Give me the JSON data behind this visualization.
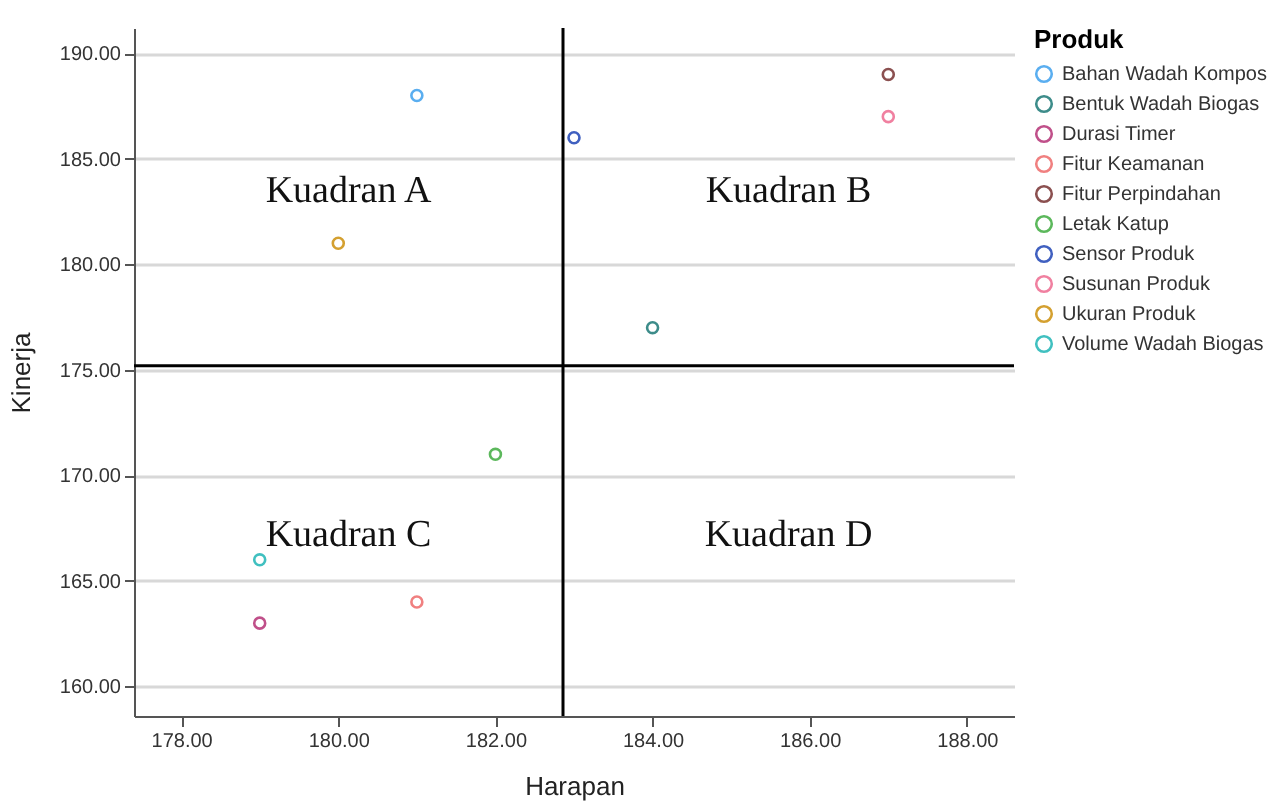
{
  "chart_data": {
    "type": "scatter",
    "xlabel": "Harapan",
    "ylabel": "Kinerja",
    "legend_title": "Produk",
    "legend": "top right",
    "grid": "y",
    "marker": "circle",
    "xlim": [
      177.4,
      188.6
    ],
    "ylim": [
      158.6,
      191.2
    ],
    "xticks": [
      {
        "value": 178,
        "label": "178.00"
      },
      {
        "value": 180,
        "label": "180.00"
      },
      {
        "value": 182,
        "label": "182.00"
      },
      {
        "value": 184,
        "label": "184.00"
      },
      {
        "value": 186,
        "label": "186.00"
      },
      {
        "value": 188,
        "label": "188.00"
      }
    ],
    "yticks": [
      {
        "value": 160,
        "label": "160.00"
      },
      {
        "value": 165,
        "label": "165.00"
      },
      {
        "value": 170,
        "label": "170.00"
      },
      {
        "value": 175,
        "label": "175.00"
      },
      {
        "value": 180,
        "label": "180.00"
      },
      {
        "value": 185,
        "label": "185.00"
      },
      {
        "value": 190,
        "label": "190.00"
      }
    ],
    "series": [
      {
        "name": "Bahan Wadah Kompos",
        "color": "#5aaef0",
        "x": [
          181
        ],
        "values": [
          188
        ]
      },
      {
        "name": "Bentuk Wadah Biogas",
        "color": "#3d8c8a",
        "x": [
          184
        ],
        "values": [
          177
        ]
      },
      {
        "name": "Durasi Timer",
        "color": "#c0508a",
        "x": [
          179
        ],
        "values": [
          163
        ]
      },
      {
        "name": "Fitur Keamanan",
        "color": "#f08080",
        "x": [
          181
        ],
        "values": [
          164
        ]
      },
      {
        "name": "Fitur Perpindahan",
        "color": "#8b5050",
        "x": [
          187
        ],
        "values": [
          189
        ]
      },
      {
        "name": "Letak Katup",
        "color": "#5cb85c",
        "x": [
          182
        ],
        "values": [
          171
        ]
      },
      {
        "name": "Sensor Produk",
        "color": "#4060c0",
        "x": [
          183
        ],
        "values": [
          186
        ]
      },
      {
        "name": "Susunan Produk",
        "color": "#f080a0",
        "x": [
          187
        ],
        "values": [
          187
        ]
      },
      {
        "name": "Ukuran Produk",
        "color": "#d4a030",
        "x": [
          180
        ],
        "values": [
          181
        ]
      },
      {
        "name": "Volume Wadah Biogas",
        "color": "#40c0c0",
        "x": [
          179
        ],
        "values": [
          166
        ]
      }
    ],
    "ref_lines": [
      {
        "axis": "x",
        "value": 182.86,
        "color": "#000000"
      },
      {
        "axis": "y",
        "value": 175.2,
        "color": "#000000"
      }
    ],
    "annotations": [
      "Kuadran A",
      "Kuadran B",
      "Kuadran C",
      "Kuadran D"
    ]
  }
}
